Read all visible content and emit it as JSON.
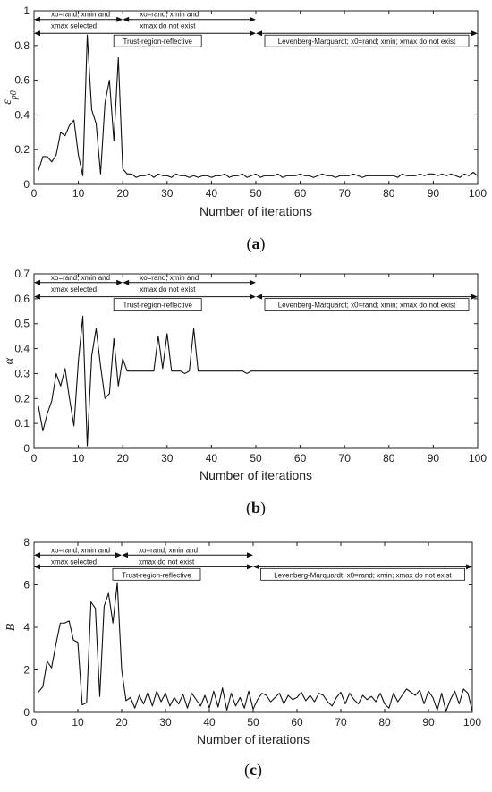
{
  "chart_data": [
    {
      "type": "line",
      "caption_letter": "a",
      "ylabel_main": "ε",
      "ylabel_sub": "p0",
      "xlabel": "Number of iterations",
      "xlim": [
        0,
        100
      ],
      "ylim": [
        0,
        1
      ],
      "xticks": [
        0,
        10,
        20,
        30,
        40,
        50,
        60,
        70,
        80,
        90,
        100
      ],
      "yticks": [
        0,
        0.2,
        0.4,
        0.6,
        0.8,
        1
      ],
      "ytick_labels": [
        "0",
        "0.2",
        "0.4",
        "0.6",
        "0.8",
        "1"
      ],
      "grid": false,
      "annotations": {
        "phase1_label": [
          "xo=rand; xmin and",
          "xmax selected"
        ],
        "phase2_label": [
          "xo=rand; xmin and",
          "xmax do not exist"
        ],
        "phase3_label": "Trust-region-reflective",
        "phase4_label": "Levenberg-Marquardt; x0=rand; xmin; xmax do not exist",
        "arrow1_x": [
          0,
          20
        ],
        "arrow2_x": [
          20,
          50
        ],
        "arrow3_x": [
          0,
          50
        ],
        "arrow4_x": [
          50,
          100
        ],
        "arrow_y": [
          0.95,
          0.87
        ]
      },
      "series": [
        {
          "x": [
            1,
            2,
            3,
            4,
            5,
            6,
            7,
            8,
            9,
            10,
            11,
            12,
            13,
            14,
            15,
            16,
            17,
            18,
            19,
            20,
            21,
            22,
            23,
            24,
            25,
            26,
            27,
            28,
            29,
            30,
            31,
            32,
            33,
            34,
            35,
            36,
            37,
            38,
            39,
            40,
            41,
            42,
            43,
            44,
            45,
            46,
            47,
            48,
            49,
            50,
            51,
            52,
            53,
            54,
            55,
            56,
            57,
            58,
            59,
            60,
            61,
            62,
            63,
            64,
            65,
            66,
            67,
            68,
            69,
            70,
            71,
            72,
            73,
            74,
            75,
            76,
            77,
            78,
            79,
            80,
            81,
            82,
            83,
            84,
            85,
            86,
            87,
            88,
            89,
            90,
            91,
            92,
            93,
            94,
            95,
            96,
            97,
            98,
            99,
            100
          ],
          "values": [
            0.08,
            0.16,
            0.16,
            0.13,
            0.17,
            0.3,
            0.28,
            0.34,
            0.37,
            0.17,
            0.05,
            0.86,
            0.43,
            0.35,
            0.06,
            0.47,
            0.6,
            0.25,
            0.73,
            0.09,
            0.06,
            0.06,
            0.04,
            0.05,
            0.05,
            0.06,
            0.04,
            0.06,
            0.05,
            0.05,
            0.04,
            0.06,
            0.05,
            0.05,
            0.04,
            0.05,
            0.04,
            0.05,
            0.05,
            0.04,
            0.05,
            0.05,
            0.06,
            0.04,
            0.05,
            0.05,
            0.06,
            0.04,
            0.05,
            0.06,
            0.04,
            0.05,
            0.05,
            0.05,
            0.06,
            0.04,
            0.05,
            0.05,
            0.05,
            0.06,
            0.05,
            0.05,
            0.04,
            0.05,
            0.06,
            0.05,
            0.05,
            0.04,
            0.05,
            0.05,
            0.05,
            0.06,
            0.05,
            0.04,
            0.05,
            0.05,
            0.05,
            0.05,
            0.05,
            0.05,
            0.05,
            0.04,
            0.06,
            0.05,
            0.05,
            0.05,
            0.06,
            0.05,
            0.06,
            0.06,
            0.05,
            0.06,
            0.05,
            0.06,
            0.05,
            0.04,
            0.06,
            0.05,
            0.07,
            0.05
          ]
        }
      ]
    },
    {
      "type": "line",
      "caption_letter": "b",
      "ylabel_main": "α",
      "ylabel_sub": "",
      "xlabel": "Number of iterations",
      "xlim": [
        0,
        100
      ],
      "ylim": [
        0,
        0.7
      ],
      "xticks": [
        0,
        10,
        20,
        30,
        40,
        50,
        60,
        70,
        80,
        90,
        100
      ],
      "yticks": [
        0,
        0.1,
        0.2,
        0.3,
        0.4,
        0.5,
        0.6,
        0.7
      ],
      "ytick_labels": [
        "0",
        "0.1",
        "0.2",
        "0.3",
        "0.4",
        "0.5",
        "0.6",
        "0.7"
      ],
      "grid": false,
      "annotations": {
        "phase1_label": [
          "xo=rand; xmin and",
          "xmax selected"
        ],
        "phase2_label": [
          "xo=rand; xmin and",
          "xmax do not exist"
        ],
        "phase3_label": "Trust-region-reflective",
        "phase4_label": "Levenberg-Marquardt; x0=rand; xmin; xmax do not exist",
        "arrow1_x": [
          0,
          20
        ],
        "arrow2_x": [
          20,
          50
        ],
        "arrow3_x": [
          0,
          50
        ],
        "arrow4_x": [
          50,
          100
        ],
        "arrow_y": [
          0.665,
          0.608
        ]
      },
      "series": [
        {
          "x": [
            1,
            2,
            3,
            4,
            5,
            6,
            7,
            8,
            9,
            10,
            11,
            12,
            13,
            14,
            15,
            16,
            17,
            18,
            19,
            20,
            21,
            22,
            23,
            24,
            25,
            26,
            27,
            28,
            29,
            30,
            31,
            32,
            33,
            34,
            35,
            36,
            37,
            38,
            39,
            40,
            41,
            42,
            43,
            44,
            45,
            46,
            47,
            48,
            49,
            50,
            51,
            52,
            53,
            54,
            55,
            56,
            57,
            58,
            59,
            60,
            61,
            62,
            63,
            64,
            65,
            66,
            67,
            68,
            69,
            70,
            71,
            72,
            73,
            74,
            75,
            76,
            77,
            78,
            79,
            80,
            81,
            82,
            83,
            84,
            85,
            86,
            87,
            88,
            89,
            90,
            91,
            92,
            93,
            94,
            95,
            96,
            97,
            98,
            99,
            100
          ],
          "values": [
            0.17,
            0.07,
            0.14,
            0.19,
            0.3,
            0.25,
            0.32,
            0.2,
            0.09,
            0.35,
            0.53,
            0.01,
            0.37,
            0.48,
            0.33,
            0.2,
            0.22,
            0.44,
            0.25,
            0.36,
            0.31,
            0.31,
            0.31,
            0.31,
            0.31,
            0.31,
            0.31,
            0.45,
            0.32,
            0.46,
            0.31,
            0.31,
            0.31,
            0.3,
            0.31,
            0.48,
            0.31,
            0.31,
            0.31,
            0.31,
            0.31,
            0.31,
            0.31,
            0.31,
            0.31,
            0.31,
            0.31,
            0.3,
            0.31,
            0.31,
            0.31,
            0.31,
            0.31,
            0.31,
            0.31,
            0.31,
            0.31,
            0.31,
            0.31,
            0.31,
            0.31,
            0.31,
            0.31,
            0.31,
            0.31,
            0.31,
            0.31,
            0.31,
            0.31,
            0.31,
            0.31,
            0.31,
            0.31,
            0.31,
            0.31,
            0.31,
            0.31,
            0.31,
            0.31,
            0.31,
            0.31,
            0.31,
            0.31,
            0.31,
            0.31,
            0.31,
            0.31,
            0.31,
            0.31,
            0.31,
            0.31,
            0.31,
            0.31,
            0.31,
            0.31,
            0.31,
            0.31,
            0.31,
            0.31,
            0.31
          ]
        }
      ]
    },
    {
      "type": "line",
      "caption_letter": "c",
      "ylabel_main": "B",
      "ylabel_sub": "",
      "xlabel": "Number of iterations",
      "xlim": [
        0,
        100
      ],
      "ylim": [
        0,
        8
      ],
      "xticks": [
        0,
        10,
        20,
        30,
        40,
        50,
        60,
        70,
        80,
        90,
        100
      ],
      "yticks": [
        0,
        2,
        4,
        6,
        8
      ],
      "ytick_labels": [
        "0",
        "2",
        "4",
        "6",
        "8"
      ],
      "grid": false,
      "annotations": {
        "phase1_label": [
          "xo=rand; xmin and",
          "xmax selected"
        ],
        "phase2_label": [
          "xo=rand; xmin and",
          "xmax do not exist"
        ],
        "phase3_label": "Trust-region-reflective",
        "phase4_label": "Levenberg-Marquardt; x0=rand; xmin; xmax do not exist",
        "arrow1_x": [
          0,
          20
        ],
        "arrow2_x": [
          20,
          50
        ],
        "arrow3_x": [
          0,
          50
        ],
        "arrow4_x": [
          50,
          100
        ],
        "arrow_y": [
          7.4,
          6.85
        ]
      },
      "series": [
        {
          "x": [
            1,
            2,
            3,
            4,
            5,
            6,
            7,
            8,
            9,
            10,
            11,
            12,
            13,
            14,
            15,
            16,
            17,
            18,
            19,
            20,
            21,
            22,
            23,
            24,
            25,
            26,
            27,
            28,
            29,
            30,
            31,
            32,
            33,
            34,
            35,
            36,
            37,
            38,
            39,
            40,
            41,
            42,
            43,
            44,
            45,
            46,
            47,
            48,
            49,
            50,
            51,
            52,
            53,
            54,
            55,
            56,
            57,
            58,
            59,
            60,
            61,
            62,
            63,
            64,
            65,
            66,
            67,
            68,
            69,
            70,
            71,
            72,
            73,
            74,
            75,
            76,
            77,
            78,
            79,
            80,
            81,
            82,
            83,
            84,
            85,
            86,
            87,
            88,
            89,
            90,
            91,
            92,
            93,
            94,
            95,
            96,
            97,
            98,
            99,
            100
          ],
          "values": [
            0.95,
            1.2,
            2.4,
            2.1,
            3.2,
            4.2,
            4.2,
            4.3,
            3.4,
            3.3,
            0.35,
            0.45,
            5.2,
            4.9,
            0.75,
            5.0,
            5.6,
            4.2,
            6.1,
            2.0,
            0.55,
            0.7,
            0.2,
            0.8,
            0.4,
            0.95,
            0.3,
            1.0,
            0.5,
            0.9,
            0.3,
            0.7,
            0.4,
            0.85,
            0.2,
            0.9,
            0.6,
            0.3,
            0.8,
            0.2,
            1.0,
            0.25,
            1.15,
            0.1,
            0.9,
            0.3,
            0.7,
            0.2,
            1.0,
            0.15,
            0.6,
            0.9,
            0.8,
            0.5,
            0.7,
            0.9,
            0.4,
            0.8,
            0.6,
            0.7,
            0.95,
            0.55,
            0.8,
            0.5,
            0.9,
            0.8,
            0.5,
            0.3,
            0.7,
            0.95,
            0.4,
            0.9,
            0.6,
            0.4,
            0.8,
            0.6,
            0.75,
            0.5,
            0.9,
            0.4,
            0.2,
            0.9,
            0.5,
            0.8,
            1.1,
            0.95,
            0.8,
            1.05,
            0.4,
            1.0,
            0.7,
            0.1,
            0.9,
            0.05,
            0.6,
            1.0,
            0.4,
            1.1,
            0.9,
            0.05
          ]
        }
      ]
    }
  ]
}
